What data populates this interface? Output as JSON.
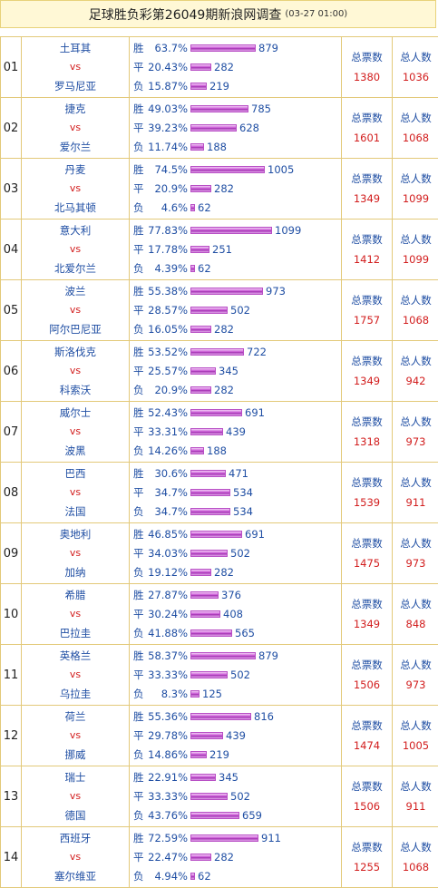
{
  "title": "足球胜负彩第26049期新浪网调查",
  "date": "(03-27 01:00)",
  "labels": {
    "win": "胜",
    "draw": "平",
    "lose": "负",
    "vs": "vs",
    "total_votes": "总票数",
    "total_people": "总人数"
  },
  "matches": [
    {
      "no": "01",
      "home": "土耳其",
      "away": "罗马尼亚",
      "win_pct": "63.7%",
      "win": 879,
      "draw_pct": "20.43%",
      "draw": 282,
      "lose_pct": "15.87%",
      "lose": 219,
      "total": 1380,
      "people": 1036
    },
    {
      "no": "02",
      "home": "捷克",
      "away": "爱尔兰",
      "win_pct": "49.03%",
      "win": 785,
      "draw_pct": "39.23%",
      "draw": 628,
      "lose_pct": "11.74%",
      "lose": 188,
      "total": 1601,
      "people": 1068
    },
    {
      "no": "03",
      "home": "丹麦",
      "away": "北马其顿",
      "win_pct": "74.5%",
      "win": 1005,
      "draw_pct": "20.9%",
      "draw": 282,
      "lose_pct": "4.6%",
      "lose": 62,
      "total": 1349,
      "people": 1099
    },
    {
      "no": "04",
      "home": "意大利",
      "away": "北爱尔兰",
      "win_pct": "77.83%",
      "win": 1099,
      "draw_pct": "17.78%",
      "draw": 251,
      "lose_pct": "4.39%",
      "lose": 62,
      "total": 1412,
      "people": 1099
    },
    {
      "no": "05",
      "home": "波兰",
      "away": "阿尔巴尼亚",
      "win_pct": "55.38%",
      "win": 973,
      "draw_pct": "28.57%",
      "draw": 502,
      "lose_pct": "16.05%",
      "lose": 282,
      "total": 1757,
      "people": 1068
    },
    {
      "no": "06",
      "home": "斯洛伐克",
      "away": "科索沃",
      "win_pct": "53.52%",
      "win": 722,
      "draw_pct": "25.57%",
      "draw": 345,
      "lose_pct": "20.9%",
      "lose": 282,
      "total": 1349,
      "people": 942
    },
    {
      "no": "07",
      "home": "威尔士",
      "away": "波黑",
      "win_pct": "52.43%",
      "win": 691,
      "draw_pct": "33.31%",
      "draw": 439,
      "lose_pct": "14.26%",
      "lose": 188,
      "total": 1318,
      "people": 973
    },
    {
      "no": "08",
      "home": "巴西",
      "away": "法国",
      "win_pct": "30.6%",
      "win": 471,
      "draw_pct": "34.7%",
      "draw": 534,
      "lose_pct": "34.7%",
      "lose": 534,
      "total": 1539,
      "people": 911
    },
    {
      "no": "09",
      "home": "奥地利",
      "away": "加纳",
      "win_pct": "46.85%",
      "win": 691,
      "draw_pct": "34.03%",
      "draw": 502,
      "lose_pct": "19.12%",
      "lose": 282,
      "total": 1475,
      "people": 973
    },
    {
      "no": "10",
      "home": "希腊",
      "away": "巴拉圭",
      "win_pct": "27.87%",
      "win": 376,
      "draw_pct": "30.24%",
      "draw": 408,
      "lose_pct": "41.88%",
      "lose": 565,
      "total": 1349,
      "people": 848
    },
    {
      "no": "11",
      "home": "英格兰",
      "away": "乌拉圭",
      "win_pct": "58.37%",
      "win": 879,
      "draw_pct": "33.33%",
      "draw": 502,
      "lose_pct": "8.3%",
      "lose": 125,
      "total": 1506,
      "people": 973
    },
    {
      "no": "12",
      "home": "荷兰",
      "away": "挪威",
      "win_pct": "55.36%",
      "win": 816,
      "draw_pct": "29.78%",
      "draw": 439,
      "lose_pct": "14.86%",
      "lose": 219,
      "total": 1474,
      "people": 1005
    },
    {
      "no": "13",
      "home": "瑞士",
      "away": "德国",
      "win_pct": "22.91%",
      "win": 345,
      "draw_pct": "33.33%",
      "draw": 502,
      "lose_pct": "43.76%",
      "lose": 659,
      "total": 1506,
      "people": 911
    },
    {
      "no": "14",
      "home": "西班牙",
      "away": "塞尔维亚",
      "win_pct": "72.59%",
      "win": 911,
      "draw_pct": "22.47%",
      "draw": 282,
      "lose_pct": "4.94%",
      "lose": 62,
      "total": 1255,
      "people": 1068
    }
  ]
}
